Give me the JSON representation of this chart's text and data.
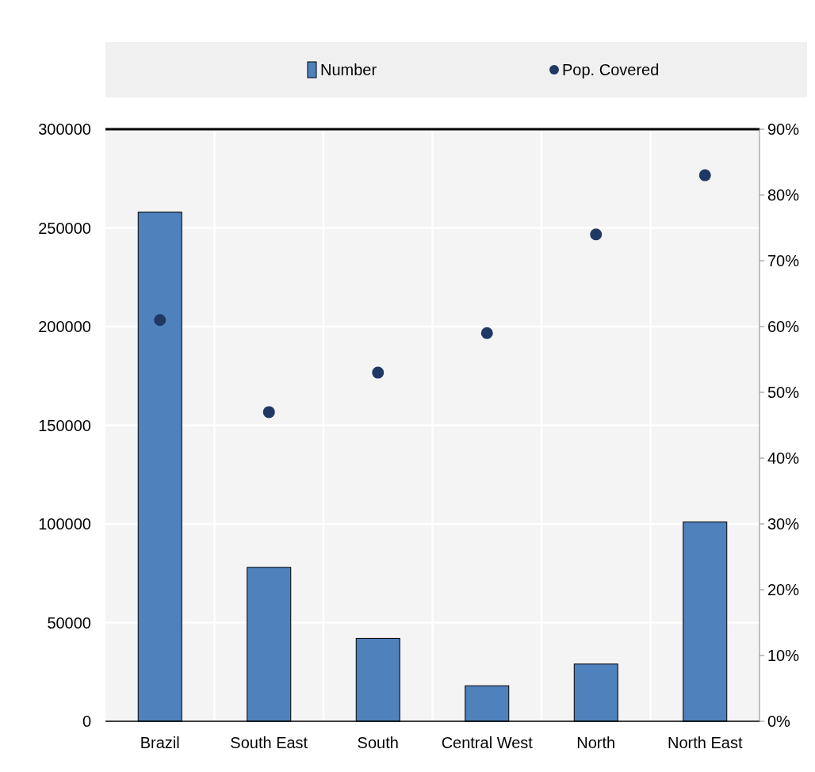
{
  "chart_data": {
    "type": "bar",
    "categories": [
      "Brazil",
      "South East",
      "South",
      "Central West",
      "North",
      "North East"
    ],
    "series": [
      {
        "name": "Number",
        "color": "#4f81bd",
        "values": [
          258000,
          78000,
          42000,
          18000,
          29000,
          101000
        ]
      },
      {
        "name": "Pop. Covered",
        "type": "scatter",
        "axis": "y2",
        "color": "#1f3864",
        "values": [
          61,
          47,
          53,
          59,
          74,
          83
        ]
      }
    ],
    "ylim": [
      0,
      300000
    ],
    "yticks": [
      0,
      50000,
      100000,
      150000,
      200000,
      250000,
      300000
    ],
    "y2lim": [
      0,
      90
    ],
    "y2ticks": [
      {
        "value": 0,
        "label": "0%"
      },
      {
        "value": 10,
        "label": "10%"
      },
      {
        "value": 20,
        "label": "20%"
      },
      {
        "value": 30,
        "label": "30%"
      },
      {
        "value": 40,
        "label": "40%"
      },
      {
        "value": 50,
        "label": "50%"
      },
      {
        "value": 60,
        "label": "60%"
      },
      {
        "value": 70,
        "label": "70%"
      },
      {
        "value": 80,
        "label": "80%"
      },
      {
        "value": 90,
        "label": "90%"
      }
    ],
    "grid": true,
    "legend": "top",
    "marker": "circle"
  }
}
